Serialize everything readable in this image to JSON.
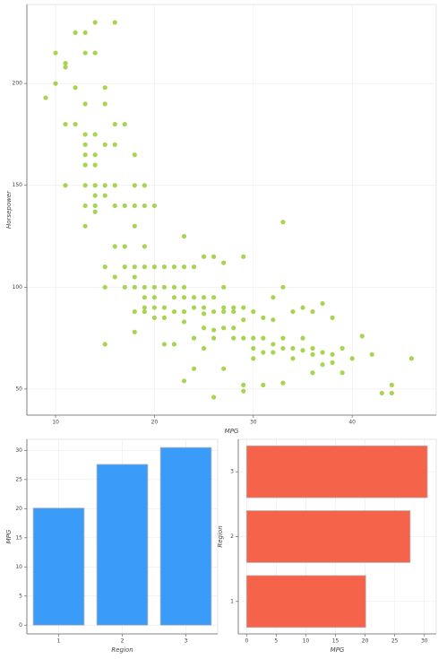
{
  "chart_data": [
    {
      "type": "scatter",
      "x_label": "MPG",
      "y_label": "Horsepower",
      "color": "#9acd32",
      "grid": true,
      "xlim": [
        7.1,
        48.5
      ],
      "ylim": [
        37.2,
        238.8
      ],
      "xticks": [
        10,
        20,
        30,
        40
      ],
      "yticks": [
        50,
        100,
        150,
        200
      ],
      "x": [
        9,
        10,
        10,
        11,
        11,
        11,
        11,
        12,
        12,
        12,
        13,
        13,
        13,
        13,
        13,
        13,
        13,
        13,
        13,
        13,
        14,
        14,
        14,
        14,
        14,
        14,
        14,
        14,
        14,
        15,
        15,
        15,
        15,
        15,
        15,
        15,
        15,
        16,
        16,
        16,
        16,
        16,
        16,
        16,
        17,
        17,
        17,
        17,
        17,
        18,
        18,
        18,
        18,
        18,
        18,
        18,
        18,
        18,
        19,
        19,
        19,
        19,
        19,
        19,
        19,
        19,
        20,
        20,
        20,
        20,
        20,
        20,
        21,
        21,
        21,
        21,
        21,
        22,
        22,
        22,
        22,
        22,
        23,
        23,
        23,
        23,
        23,
        23,
        23,
        24,
        24,
        24,
        24,
        24,
        25,
        25,
        25,
        25,
        25,
        25,
        26,
        26,
        26,
        26,
        26,
        26,
        27,
        27,
        27,
        27,
        27,
        27,
        28,
        28,
        28,
        28,
        29,
        29,
        29,
        29,
        29,
        29,
        30,
        30,
        30,
        30,
        31,
        31,
        31,
        31,
        32,
        32,
        32,
        32,
        33,
        33,
        33,
        33,
        33,
        34,
        34,
        34,
        35,
        35,
        35,
        36,
        36,
        36,
        36,
        37,
        37,
        37,
        38,
        38,
        38,
        39,
        39,
        40,
        41,
        42,
        43,
        44,
        44,
        46
      ],
      "y": [
        193,
        215,
        200,
        210,
        208,
        180,
        150,
        225,
        198,
        180,
        225,
        215,
        190,
        175,
        170,
        165,
        160,
        150,
        140,
        130,
        230,
        215,
        175,
        165,
        160,
        150,
        145,
        140,
        137,
        198,
        190,
        170,
        150,
        145,
        110,
        100,
        72,
        230,
        180,
        170,
        150,
        140,
        120,
        105,
        180,
        140,
        120,
        110,
        100,
        165,
        150,
        140,
        130,
        110,
        105,
        100,
        88,
        78,
        150,
        140,
        120,
        110,
        100,
        95,
        90,
        88,
        140,
        110,
        100,
        95,
        90,
        85,
        110,
        100,
        90,
        85,
        72,
        110,
        100,
        95,
        88,
        72,
        125,
        110,
        100,
        95,
        88,
        83,
        54,
        110,
        95,
        90,
        75,
        60,
        115,
        95,
        90,
        87,
        80,
        70,
        115,
        95,
        88,
        79,
        75,
        46,
        112,
        100,
        90,
        88,
        80,
        60,
        90,
        88,
        80,
        75,
        115,
        90,
        84,
        75,
        52,
        49,
        88,
        75,
        70,
        65,
        85,
        75,
        68,
        52,
        95,
        84,
        72,
        68,
        132,
        100,
        75,
        70,
        53,
        88,
        70,
        65,
        90,
        75,
        69,
        88,
        70,
        67,
        58,
        92,
        68,
        62,
        85,
        67,
        63,
        70,
        58,
        65,
        76,
        67,
        48,
        52,
        48,
        65
      ]
    },
    {
      "type": "bar",
      "orientation": "vertical",
      "x_label": "Region",
      "y_label": "MPG",
      "color": "#3a9bf9",
      "grid": true,
      "categories": [
        "1",
        "2",
        "3"
      ],
      "values": [
        20.1,
        27.6,
        30.5
      ],
      "ylim": [
        -1.5,
        31.9
      ],
      "yticks": [
        0,
        5,
        10,
        15,
        20,
        25,
        30
      ]
    },
    {
      "type": "bar",
      "orientation": "horizontal",
      "x_label": "MPG",
      "y_label": "Region",
      "color": "#f4634a",
      "grid": true,
      "categories": [
        "1",
        "2",
        "3"
      ],
      "values": [
        20.1,
        27.6,
        30.5
      ],
      "xlim": [
        -1.4,
        32
      ],
      "xticks": [
        0,
        5,
        10,
        15,
        20,
        25,
        30
      ]
    }
  ]
}
